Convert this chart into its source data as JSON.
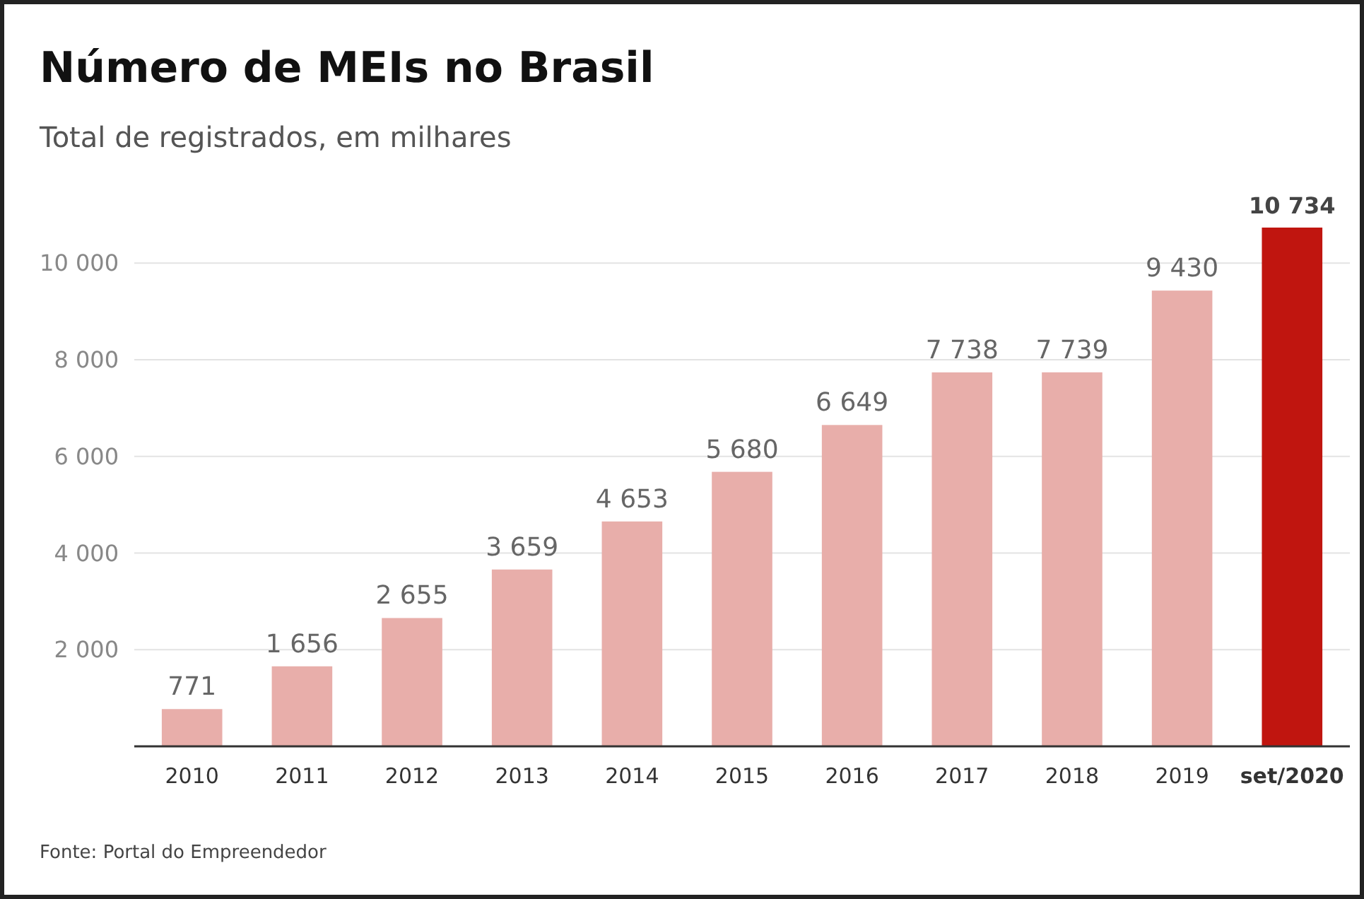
{
  "chart_data": {
    "type": "bar",
    "title": "Número de MEIs no Brasil",
    "subtitle": "Total de registrados, em milhares",
    "categories": [
      "2010",
      "2011",
      "2012",
      "2013",
      "2014",
      "2015",
      "2016",
      "2017",
      "2018",
      "2019",
      "set/2020"
    ],
    "values": [
      771,
      1656,
      2655,
      3659,
      4653,
      5680,
      6649,
      7738,
      7739,
      9430,
      10734
    ],
    "colors": [
      "#e8aeaa",
      "#e8aeaa",
      "#e8aeaa",
      "#e8aeaa",
      "#e8aeaa",
      "#e8aeaa",
      "#e8aeaa",
      "#e8aeaa",
      "#e8aeaa",
      "#e8aeaa",
      "#c0150f"
    ],
    "value_labels": [
      "771",
      "1 656",
      "2 655",
      "3 659",
      "4 653",
      "5 680",
      "6 649",
      "7 738",
      "7 739",
      "9 430",
      "10 734"
    ],
    "yticks": [
      {
        "value": 2000,
        "label": "2 000"
      },
      {
        "value": 4000,
        "label": "4 000"
      },
      {
        "value": 6000,
        "label": "6 000"
      },
      {
        "value": 8000,
        "label": "8 000"
      },
      {
        "value": 10000,
        "label": "10 000"
      }
    ],
    "ylim": [
      0,
      10734
    ],
    "grid": "y",
    "annotations": [
      "Fonte: Portal do Empreendedor"
    ]
  }
}
